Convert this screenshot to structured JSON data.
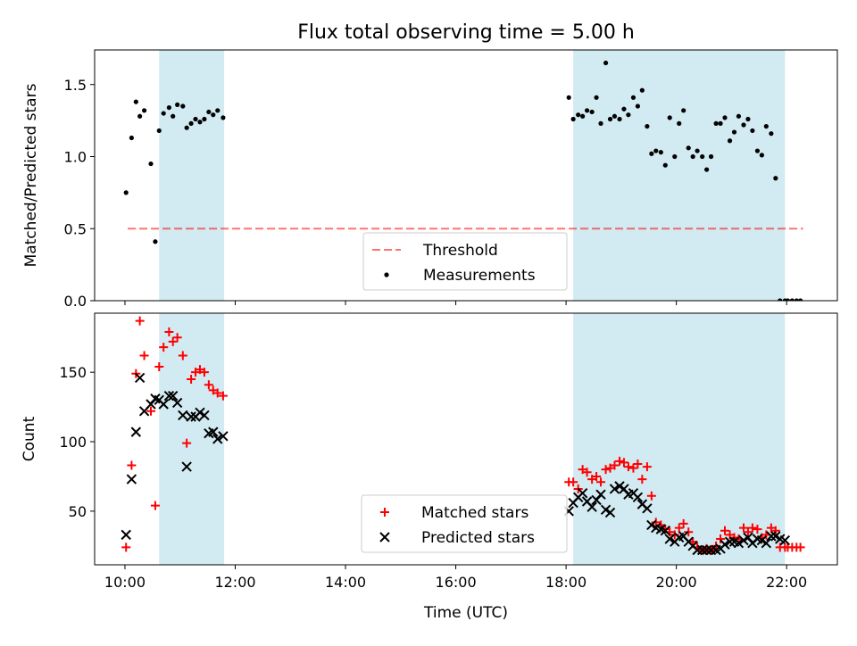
{
  "title": "Flux total observing time = 5.00 h",
  "x_tick_labels": [
    "10:00",
    "12:00",
    "14:00",
    "16:00",
    "18:00",
    "20:00",
    "22:00"
  ],
  "x_ticks_hours": [
    10,
    12,
    14,
    16,
    18,
    20,
    22
  ],
  "xlabel": "Time (UTC)",
  "xlim_hours": [
    9.45,
    22.92
  ],
  "colors": {
    "band": "#add8e6",
    "threshold": "#ff0000",
    "measurement": "#000000",
    "matched": "#ff0000",
    "predicted": "#000000"
  },
  "chart_data": [
    {
      "type": "scatter",
      "ylabel": "Matched/Predicted stars",
      "ylim": [
        0,
        1.74
      ],
      "y_tick_labels": [
        "0.0",
        "0.5",
        "1.0",
        "1.5"
      ],
      "y_ticks": [
        0.0,
        0.5,
        1.0,
        1.5
      ],
      "shaded_intervals_hours": [
        [
          10.62,
          11.8
        ],
        [
          18.13,
          21.97
        ]
      ],
      "threshold": {
        "name": "Threshold",
        "y": 0.5,
        "x_range_hours": [
          10.05,
          22.3
        ]
      },
      "legend_placement": "lower-center",
      "series": [
        {
          "name": "Measurements",
          "x_hours": [
            10.02,
            10.12,
            10.2,
            10.27,
            10.35,
            10.47,
            10.55,
            10.62,
            10.7,
            10.8,
            10.87,
            10.95,
            11.05,
            11.12,
            11.2,
            11.28,
            11.36,
            11.44,
            11.52,
            11.6,
            11.68,
            11.78,
            18.05,
            18.13,
            18.22,
            18.3,
            18.38,
            18.47,
            18.55,
            18.63,
            18.72,
            18.8,
            18.88,
            18.97,
            19.05,
            19.13,
            19.22,
            19.3,
            19.38,
            19.47,
            19.55,
            19.63,
            19.72,
            19.8,
            19.88,
            19.97,
            20.05,
            20.13,
            20.22,
            20.3,
            20.38,
            20.47,
            20.55,
            20.63,
            20.72,
            20.8,
            20.88,
            20.97,
            21.05,
            21.13,
            21.22,
            21.3,
            21.38,
            21.47,
            21.55,
            21.63,
            21.72,
            21.8,
            21.88,
            21.97,
            22.02,
            22.1,
            22.18,
            22.25
          ],
          "y": [
            0.75,
            1.13,
            1.38,
            1.28,
            1.32,
            0.95,
            0.41,
            1.18,
            1.3,
            1.34,
            1.28,
            1.36,
            1.35,
            1.2,
            1.23,
            1.26,
            1.24,
            1.26,
            1.31,
            1.29,
            1.32,
            1.27,
            1.41,
            1.26,
            1.29,
            1.28,
            1.32,
            1.31,
            1.41,
            1.23,
            1.65,
            1.26,
            1.28,
            1.26,
            1.33,
            1.29,
            1.41,
            1.35,
            1.46,
            1.21,
            1.02,
            1.04,
            1.03,
            0.94,
            1.27,
            1.0,
            1.23,
            1.32,
            1.06,
            1.0,
            1.04,
            1.0,
            0.91,
            1.0,
            1.23,
            1.23,
            1.27,
            1.11,
            1.17,
            1.28,
            1.22,
            1.26,
            1.18,
            1.04,
            1.01,
            1.21,
            1.16,
            0.85,
            0.0,
            0.0,
            0.0,
            0.0,
            0.0,
            0.0
          ]
        }
      ]
    },
    {
      "type": "scatter",
      "ylabel": "Count",
      "ylim": [
        11.4,
        192.5
      ],
      "y_tick_labels": [
        "50",
        "100",
        "150"
      ],
      "y_ticks": [
        50,
        100,
        150
      ],
      "shaded_intervals_hours": [
        [
          10.62,
          11.8
        ],
        [
          18.13,
          21.97
        ]
      ],
      "legend_placement": "lower-center",
      "series": [
        {
          "name": "Matched stars",
          "marker": "plus",
          "x_hours": [
            10.02,
            10.12,
            10.2,
            10.27,
            10.35,
            10.47,
            10.55,
            10.62,
            10.7,
            10.8,
            10.87,
            10.95,
            11.05,
            11.12,
            11.2,
            11.28,
            11.36,
            11.44,
            11.52,
            11.6,
            11.68,
            11.78,
            18.05,
            18.13,
            18.22,
            18.3,
            18.38,
            18.47,
            18.55,
            18.63,
            18.72,
            18.8,
            18.88,
            18.97,
            19.05,
            19.13,
            19.22,
            19.3,
            19.38,
            19.47,
            19.55,
            19.63,
            19.72,
            19.8,
            19.88,
            19.97,
            20.05,
            20.13,
            20.22,
            20.3,
            20.38,
            20.47,
            20.55,
            20.63,
            20.72,
            20.8,
            20.88,
            20.97,
            21.05,
            21.13,
            21.22,
            21.3,
            21.38,
            21.47,
            21.55,
            21.63,
            21.72,
            21.8,
            21.88,
            21.97,
            22.02,
            22.1,
            22.18,
            22.25
          ],
          "y": [
            24,
            83,
            149,
            187,
            162,
            122,
            54,
            154,
            168,
            179,
            172,
            175,
            162,
            99,
            145,
            150,
            152,
            150,
            141,
            137,
            135,
            133,
            71,
            71,
            66,
            80,
            78,
            73,
            75,
            71,
            80,
            81,
            83,
            86,
            85,
            82,
            81,
            84,
            73,
            82,
            61,
            42,
            40,
            37,
            35,
            33,
            38,
            41,
            35,
            28,
            24,
            22,
            23,
            22,
            25,
            30,
            36,
            33,
            31,
            30,
            38,
            35,
            38,
            37,
            31,
            33,
            38,
            36,
            24,
            24,
            24,
            24,
            24,
            24
          ]
        },
        {
          "name": "Predicted stars",
          "marker": "x",
          "x_hours": [
            10.02,
            10.12,
            10.2,
            10.27,
            10.35,
            10.47,
            10.55,
            10.62,
            10.7,
            10.8,
            10.87,
            10.95,
            11.05,
            11.12,
            11.2,
            11.28,
            11.36,
            11.44,
            11.52,
            11.6,
            11.68,
            11.78,
            18.05,
            18.13,
            18.22,
            18.3,
            18.38,
            18.47,
            18.55,
            18.63,
            18.72,
            18.8,
            18.88,
            18.97,
            19.05,
            19.13,
            19.22,
            19.3,
            19.38,
            19.47,
            19.55,
            19.63,
            19.72,
            19.8,
            19.88,
            19.97,
            20.05,
            20.13,
            20.22,
            20.3,
            20.38,
            20.47,
            20.55,
            20.63,
            20.72,
            20.8,
            20.88,
            20.97,
            21.05,
            21.13,
            21.22,
            21.3,
            21.38,
            21.47,
            21.55,
            21.63,
            21.72,
            21.8,
            21.88,
            21.97
          ],
          "y": [
            33,
            73,
            107,
            146,
            122,
            127,
            131,
            130,
            127,
            133,
            133,
            128,
            119,
            82,
            118,
            118,
            121,
            119,
            106,
            107,
            102,
            104,
            50,
            56,
            60,
            63,
            57,
            53,
            58,
            62,
            51,
            49,
            66,
            68,
            66,
            62,
            63,
            60,
            55,
            52,
            40,
            38,
            37,
            36,
            30,
            28,
            31,
            32,
            28,
            25,
            22,
            22,
            22,
            22,
            22,
            23,
            26,
            28,
            28,
            27,
            29,
            31,
            27,
            30,
            29,
            27,
            32,
            32,
            30,
            29
          ]
        }
      ]
    }
  ]
}
